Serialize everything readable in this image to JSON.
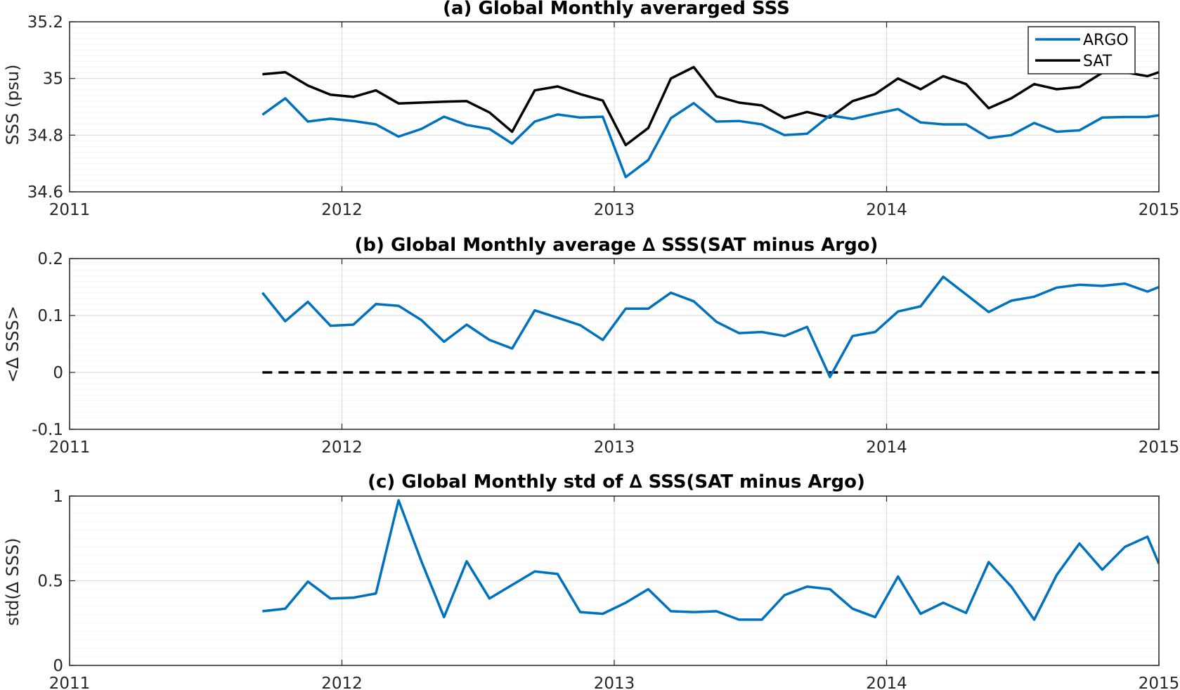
{
  "colors": {
    "argo": "#0072BD",
    "sat": "#000000",
    "zero_line": "#000000",
    "grid": "#dcdcdc",
    "minor_grid": "#e6e6e6",
    "axes": "#262626"
  },
  "chart_data": [
    {
      "type": "line",
      "title": "(a) Global Monthly averarged SSS",
      "xlabel": "",
      "ylabel": "SSS (psu)",
      "xlim": [
        2011,
        2015
      ],
      "ylim": [
        34.6,
        35.2
      ],
      "xticks": [
        2011,
        2012,
        2013,
        2014,
        2015
      ],
      "xtick_labels": [
        "2011",
        "2012",
        "2013",
        "2014",
        "2015"
      ],
      "yticks": [
        34.6,
        34.8,
        35,
        35.2
      ],
      "ytick_labels": [
        "34.6",
        "34.8",
        "35",
        "35.2"
      ],
      "grid": true,
      "minor_grid": true,
      "legend": {
        "position": "top-right",
        "entries": [
          "ARGO",
          "SAT"
        ]
      },
      "x": [
        2011.708,
        2011.792,
        2011.875,
        2011.958,
        2012.042,
        2012.125,
        2012.208,
        2012.292,
        2012.375,
        2012.458,
        2012.542,
        2012.625,
        2012.708,
        2012.792,
        2012.875,
        2012.958,
        2013.042,
        2013.125,
        2013.208,
        2013.292,
        2013.375,
        2013.458,
        2013.542,
        2013.625,
        2013.708,
        2013.792,
        2013.875,
        2013.958,
        2014.042,
        2014.125,
        2014.208,
        2014.292,
        2014.375,
        2014.458,
        2014.542,
        2014.625,
        2014.708,
        2014.792,
        2014.875,
        2014.958,
        2015.0
      ],
      "series": [
        {
          "name": "ARGO",
          "color": "#0072BD",
          "values": [
            34.872,
            34.93,
            34.848,
            34.858,
            34.85,
            34.838,
            34.795,
            34.822,
            34.865,
            34.836,
            34.822,
            34.77,
            34.848,
            34.873,
            34.862,
            34.865,
            34.652,
            34.712,
            34.86,
            34.913,
            34.848,
            34.85,
            34.838,
            34.8,
            34.805,
            34.87,
            34.857,
            34.875,
            34.892,
            34.845,
            34.838,
            34.838,
            34.79,
            34.8,
            34.843,
            34.812,
            34.817,
            34.862,
            34.864,
            34.864,
            34.87
          ]
        },
        {
          "name": "SAT",
          "color": "#000000",
          "values": [
            35.015,
            35.022,
            34.975,
            34.943,
            34.935,
            34.958,
            34.912,
            34.915,
            34.918,
            34.92,
            34.88,
            34.812,
            34.958,
            34.972,
            34.945,
            34.922,
            34.765,
            34.825,
            35.0,
            35.04,
            34.937,
            34.915,
            34.905,
            34.86,
            34.882,
            34.862,
            34.92,
            34.945,
            35.0,
            34.962,
            35.008,
            34.98,
            34.895,
            34.93,
            34.98,
            34.962,
            34.97,
            35.02,
            35.022,
            35.008,
            35.022
          ]
        }
      ]
    },
    {
      "type": "line",
      "title": "(b) Global Monthly average ∆ SSS(SAT minus Argo)",
      "xlabel": "",
      "ylabel": "<∆ SSS>",
      "xlim": [
        2011,
        2015
      ],
      "ylim": [
        -0.1,
        0.2
      ],
      "xticks": [
        2011,
        2012,
        2013,
        2014,
        2015
      ],
      "xtick_labels": [
        "2011",
        "2012",
        "2013",
        "2014",
        "2015"
      ],
      "yticks": [
        -0.1,
        0,
        0.1,
        0.2
      ],
      "ytick_labels": [
        "-0.1",
        "0",
        "0.1",
        "0.2"
      ],
      "grid": true,
      "minor_grid": true,
      "reference_line": {
        "y": 0,
        "x_start": 2011.708,
        "x_end": 2015.0,
        "style": "dashed",
        "color": "#000000"
      },
      "x": [
        2011.708,
        2011.792,
        2011.875,
        2011.958,
        2012.042,
        2012.125,
        2012.208,
        2012.292,
        2012.375,
        2012.458,
        2012.542,
        2012.625,
        2012.708,
        2012.792,
        2012.875,
        2012.958,
        2013.042,
        2013.125,
        2013.208,
        2013.292,
        2013.375,
        2013.458,
        2013.542,
        2013.625,
        2013.708,
        2013.792,
        2013.875,
        2013.958,
        2014.042,
        2014.125,
        2014.208,
        2014.292,
        2014.375,
        2014.458,
        2014.542,
        2014.625,
        2014.708,
        2014.792,
        2014.875,
        2014.958,
        2015.0
      ],
      "series": [
        {
          "color": "#0072BD",
          "values": [
            0.14,
            0.09,
            0.124,
            0.082,
            0.084,
            0.12,
            0.117,
            0.092,
            0.054,
            0.084,
            0.057,
            0.042,
            0.109,
            0.096,
            0.083,
            0.057,
            0.112,
            0.112,
            0.14,
            0.125,
            0.089,
            0.069,
            0.071,
            0.064,
            0.08,
            -0.008,
            0.064,
            0.071,
            0.107,
            0.116,
            0.168,
            0.137,
            0.106,
            0.126,
            0.133,
            0.149,
            0.154,
            0.152,
            0.156,
            0.142,
            0.15
          ]
        }
      ]
    },
    {
      "type": "line",
      "title": "(c) Global Monthly std of ∆ SSS(SAT minus Argo)",
      "xlabel": "",
      "ylabel": "std(∆ SSS)",
      "xlim": [
        2011,
        2015
      ],
      "ylim": [
        0,
        1
      ],
      "xticks": [
        2011,
        2012,
        2013,
        2014,
        2015
      ],
      "xtick_labels": [
        "2011",
        "2012",
        "2013",
        "2014",
        "2015"
      ],
      "yticks": [
        0,
        0.5,
        1
      ],
      "ytick_labels": [
        "0",
        "0.5",
        "1"
      ],
      "grid": true,
      "minor_grid": true,
      "x": [
        2011.708,
        2011.792,
        2011.875,
        2011.958,
        2012.042,
        2012.125,
        2012.208,
        2012.292,
        2012.375,
        2012.458,
        2012.542,
        2012.625,
        2012.708,
        2012.792,
        2012.875,
        2012.958,
        2013.042,
        2013.125,
        2013.208,
        2013.292,
        2013.375,
        2013.458,
        2013.542,
        2013.625,
        2013.708,
        2013.792,
        2013.875,
        2013.958,
        2014.042,
        2014.125,
        2014.208,
        2014.292,
        2014.375,
        2014.458,
        2014.542,
        2014.625,
        2014.708,
        2014.792,
        2014.875,
        2014.958,
        2015.0
      ],
      "series": [
        {
          "color": "#0072BD",
          "values": [
            0.32,
            0.335,
            0.495,
            0.395,
            0.4,
            0.425,
            0.975,
            0.615,
            0.285,
            0.615,
            0.395,
            0.475,
            0.555,
            0.54,
            0.315,
            0.305,
            0.37,
            0.45,
            0.32,
            0.315,
            0.32,
            0.27,
            0.27,
            0.415,
            0.465,
            0.45,
            0.335,
            0.285,
            0.525,
            0.305,
            0.37,
            0.31,
            0.61,
            0.465,
            0.27,
            0.535,
            0.72,
            0.565,
            0.7,
            0.76,
            0.6
          ]
        }
      ]
    }
  ]
}
